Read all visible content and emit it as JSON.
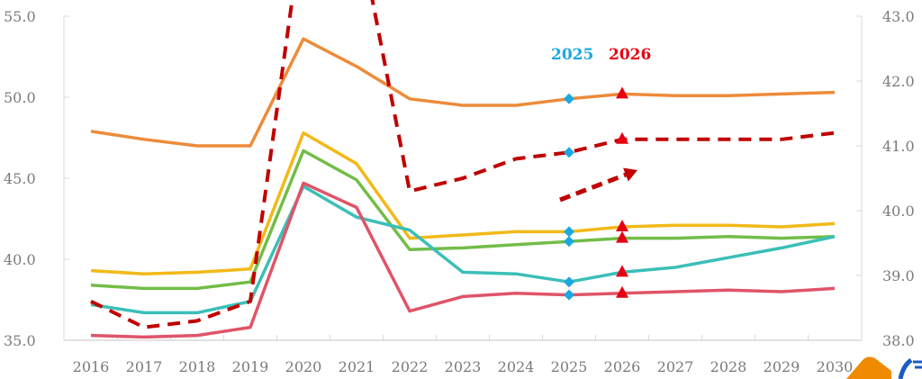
{
  "chart_data": {
    "type": "line",
    "title": "",
    "xlabel": "",
    "ylabel": "",
    "x": [
      "2016",
      "2017",
      "2018",
      "2019",
      "2020",
      "2021",
      "2022",
      "2023",
      "2024",
      "2025",
      "2026",
      "2027",
      "2028",
      "2029",
      "2030"
    ],
    "left_axis": {
      "ylim": [
        35.0,
        55.0
      ],
      "ticks": [
        "35.0",
        "40.0",
        "45.0",
        "50.0",
        "55.0"
      ]
    },
    "right_axis": {
      "ylim": [
        38.0,
        43.0
      ],
      "ticks": [
        "38.0",
        "39.0",
        "40.0",
        "41.0",
        "42.0",
        "43.0"
      ]
    },
    "grid": false,
    "legend": null,
    "series": [
      {
        "name": "orange",
        "axis": "left",
        "style": "solid",
        "color": "#ED8B3A",
        "values": [
          47.9,
          47.4,
          47.0,
          47.0,
          53.6,
          51.9,
          49.9,
          49.5,
          49.5,
          49.9,
          50.2,
          50.1,
          50.1,
          50.2,
          50.3
        ]
      },
      {
        "name": "yellow",
        "axis": "left",
        "style": "solid",
        "color": "#F2B918",
        "values": [
          39.3,
          39.1,
          39.2,
          39.4,
          47.8,
          45.9,
          41.3,
          41.5,
          41.7,
          41.7,
          42.0,
          42.1,
          42.1,
          42.0,
          42.2
        ]
      },
      {
        "name": "green",
        "axis": "left",
        "style": "solid",
        "color": "#72BD48",
        "values": [
          38.4,
          38.2,
          38.2,
          38.6,
          46.7,
          44.9,
          40.6,
          40.7,
          40.9,
          41.1,
          41.3,
          41.3,
          41.4,
          41.3,
          41.4
        ]
      },
      {
        "name": "teal",
        "axis": "left",
        "style": "solid",
        "color": "#3BBFB8",
        "values": [
          37.2,
          36.7,
          36.7,
          37.4,
          44.5,
          42.6,
          41.8,
          39.2,
          39.1,
          38.6,
          39.2,
          39.5,
          40.1,
          40.7,
          41.4
        ]
      },
      {
        "name": "red",
        "axis": "left",
        "style": "solid",
        "color": "#E05468",
        "values": [
          35.3,
          35.2,
          35.3,
          35.8,
          44.7,
          43.2,
          36.8,
          37.7,
          37.9,
          37.8,
          37.9,
          38.0,
          38.1,
          38.0,
          38.2
        ]
      },
      {
        "name": "dashed",
        "axis": "right",
        "style": "dashed",
        "color": "#C00000",
        "values": [
          38.6,
          38.2,
          38.3,
          38.6,
          44.5,
          44.5,
          40.3,
          40.5,
          40.8,
          40.9,
          41.1,
          41.1,
          41.1,
          41.1,
          41.2
        ]
      }
    ],
    "annotations": [
      {
        "text": "2025",
        "color": "#1BA8E0",
        "marker": "diamond",
        "x_index": 9
      },
      {
        "text": "2026",
        "color": "#E60012",
        "marker": "triangle",
        "x_index": 10
      }
    ],
    "arrow": {
      "from": [
        622,
        222
      ],
      "to": [
        708,
        189
      ],
      "color": "#C00000",
      "style": "dashed"
    }
  },
  "annotation_2025": "2025",
  "annotation_2026": "2026"
}
